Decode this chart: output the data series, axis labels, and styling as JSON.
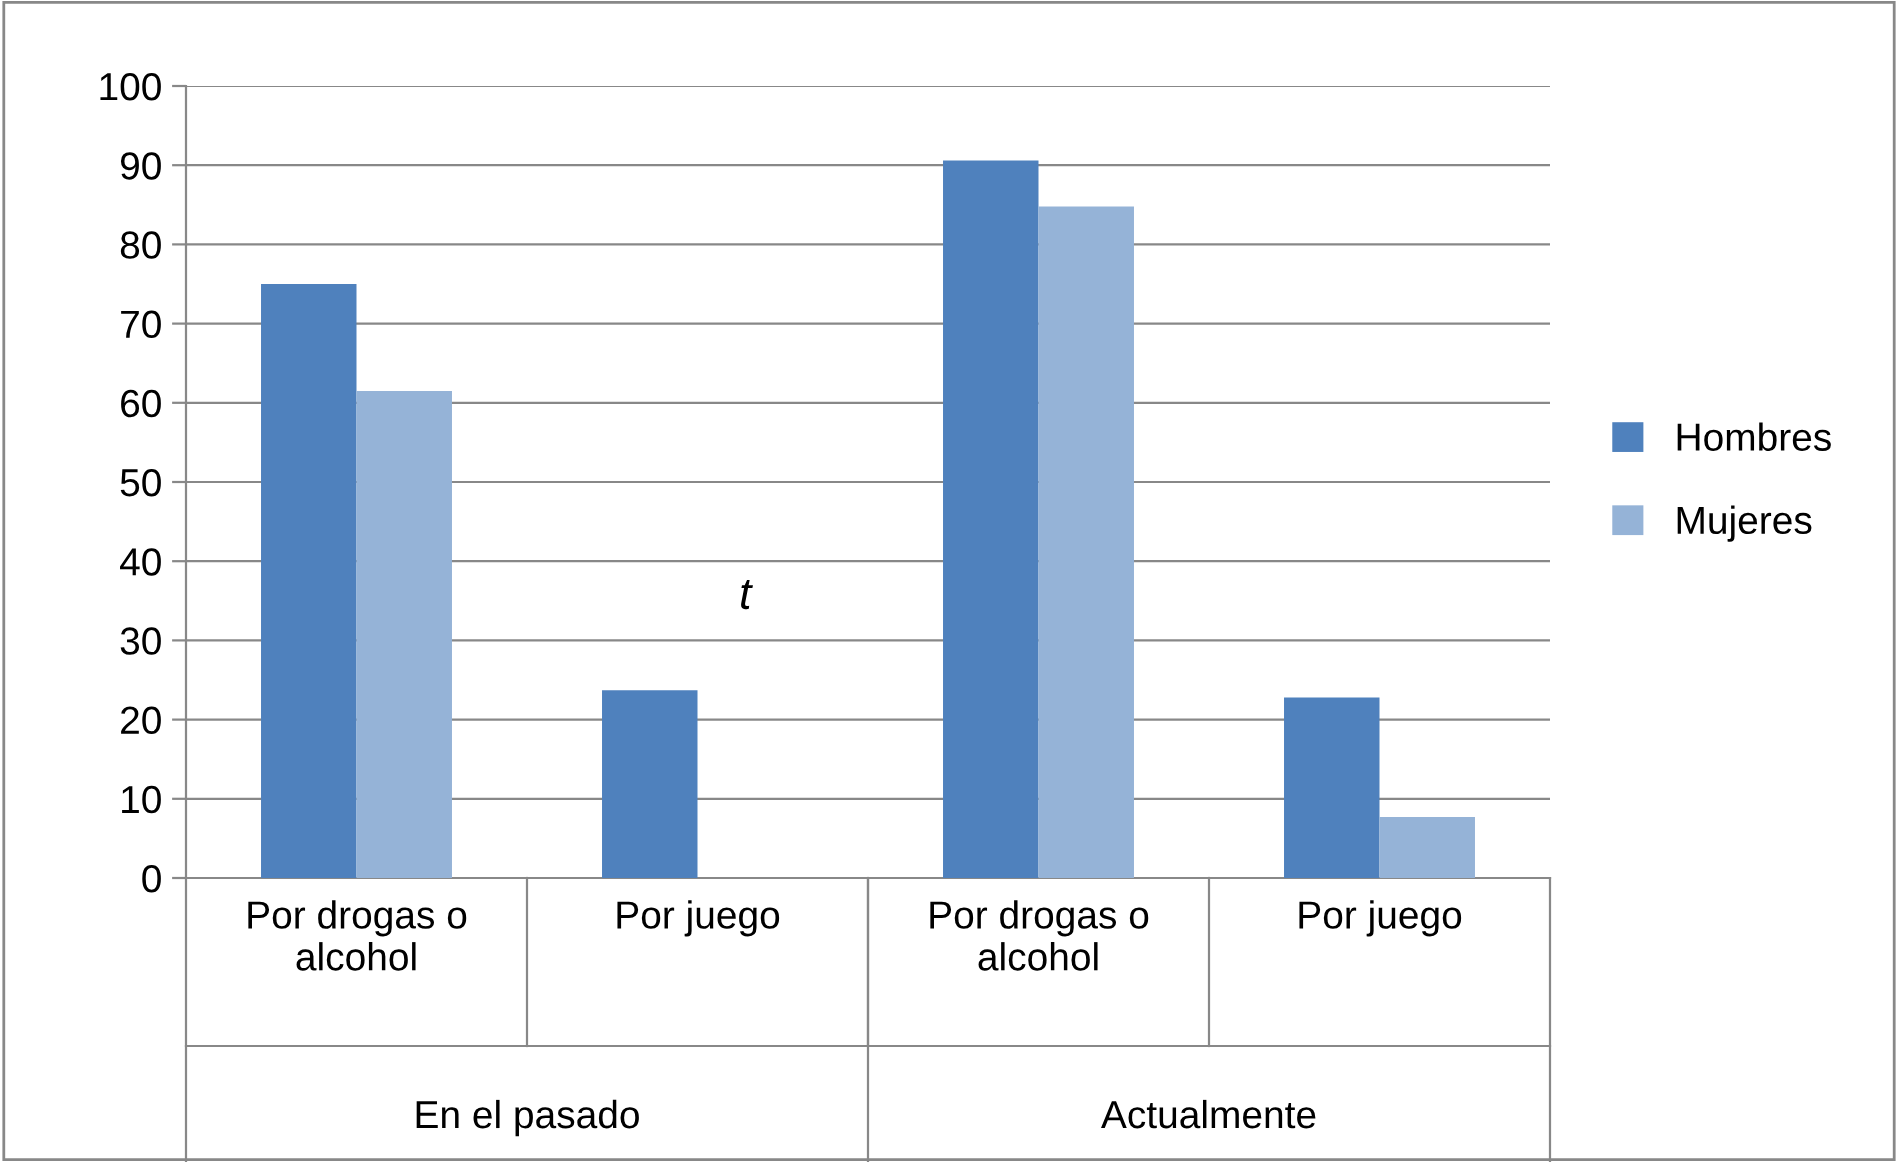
{
  "chart_data": {
    "type": "bar",
    "categories": [
      "Por drogas o\nalcohol",
      "Por juego",
      "Por drogas o\nalcohol",
      "Por juego"
    ],
    "series": [
      {
        "name": "Hombres",
        "color": "#4f81bd",
        "values": [
          75,
          23.7,
          90.6,
          22.8
        ]
      },
      {
        "name": "Mujeres",
        "color": "#95b3d7",
        "values": [
          61.5,
          null,
          84.8,
          7.7
        ]
      }
    ],
    "annotations": [
      "t",
      "En el pasado",
      "Actualmente"
    ],
    "ylim": [
      0,
      100
    ],
    "yticks": [
      0,
      10,
      20,
      30,
      40,
      50,
      60,
      70,
      80,
      90,
      100
    ],
    "grid": "y",
    "legend": "right"
  }
}
